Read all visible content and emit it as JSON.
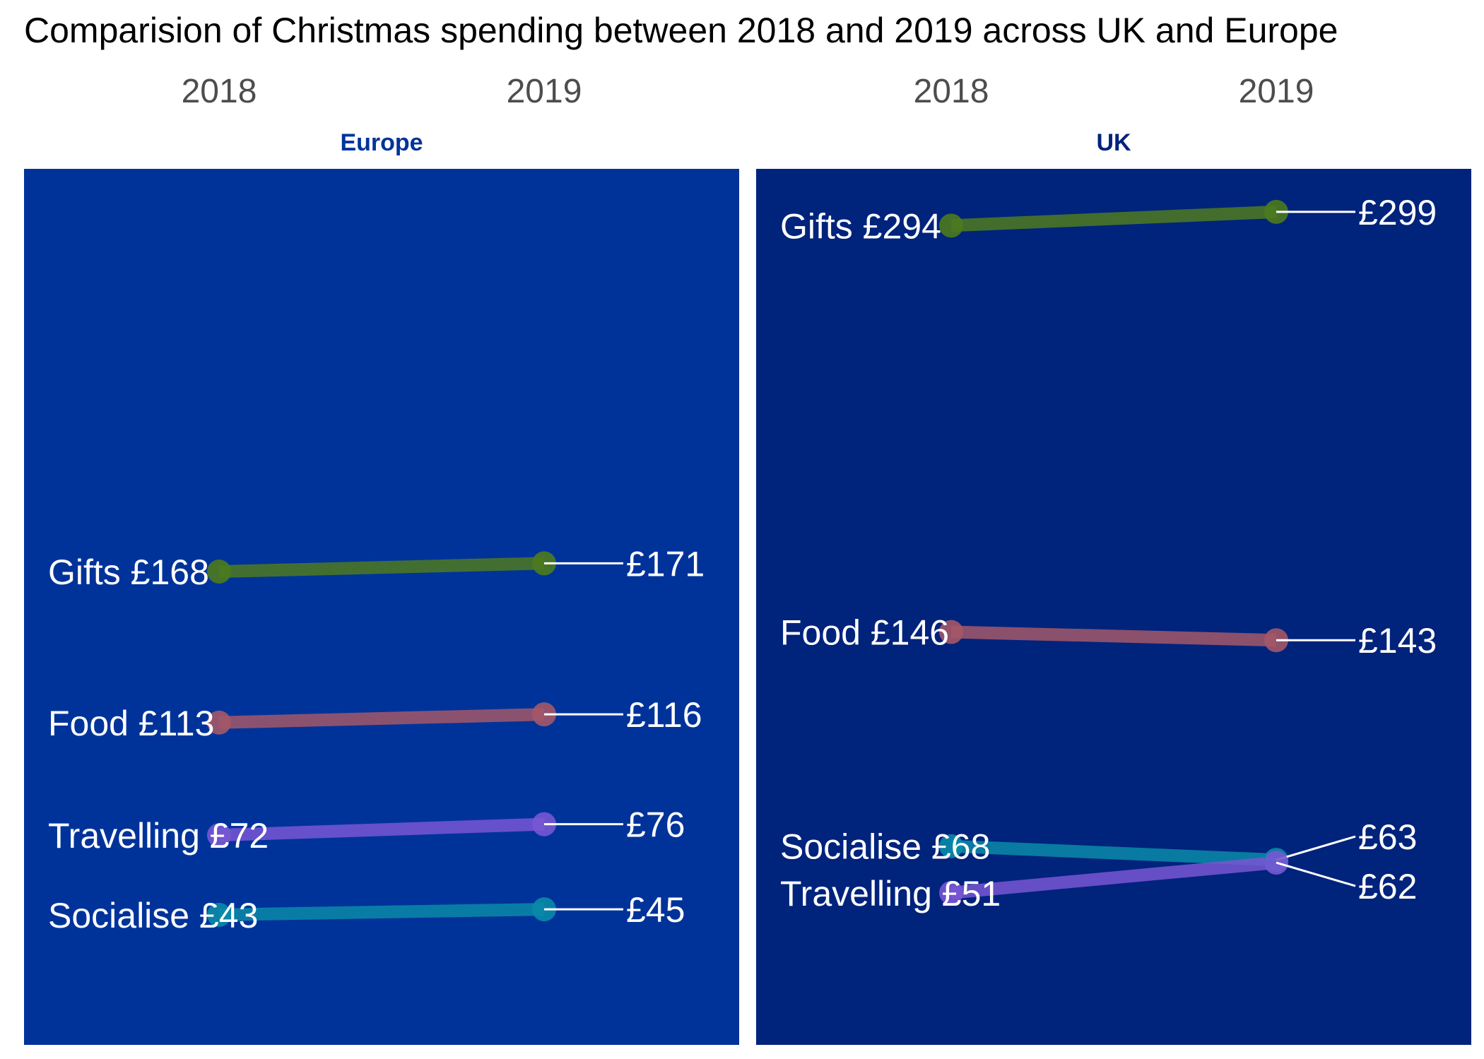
{
  "chart_data": {
    "type": "line",
    "subtype": "slope",
    "title": "Comparision of Christmas spending between 2018 and 2019 across UK and Europe",
    "x": [
      "2018",
      "2019"
    ],
    "currency": "£",
    "y_range": [
      0,
      300
    ],
    "grid": false,
    "legend": "none",
    "colors": {
      "Gifts": "#4d7a1e",
      "Food": "#a35868",
      "Travelling": "#7856d4",
      "Socialise": "#0a8aa8"
    },
    "panels": [
      {
        "name": "Europe",
        "background": "#00339a",
        "series": [
          {
            "name": "Gifts",
            "values": [
              168,
              171
            ]
          },
          {
            "name": "Food",
            "values": [
              113,
              116
            ]
          },
          {
            "name": "Travelling",
            "values": [
              72,
              76
            ]
          },
          {
            "name": "Socialise",
            "values": [
              43,
              45
            ]
          }
        ]
      },
      {
        "name": "UK",
        "background": "#00237c",
        "series": [
          {
            "name": "Gifts",
            "values": [
              294,
              299
            ]
          },
          {
            "name": "Food",
            "values": [
              146,
              143
            ]
          },
          {
            "name": "Socialise",
            "values": [
              68,
              63
            ]
          },
          {
            "name": "Travelling",
            "values": [
              51,
              62
            ]
          }
        ]
      }
    ]
  }
}
